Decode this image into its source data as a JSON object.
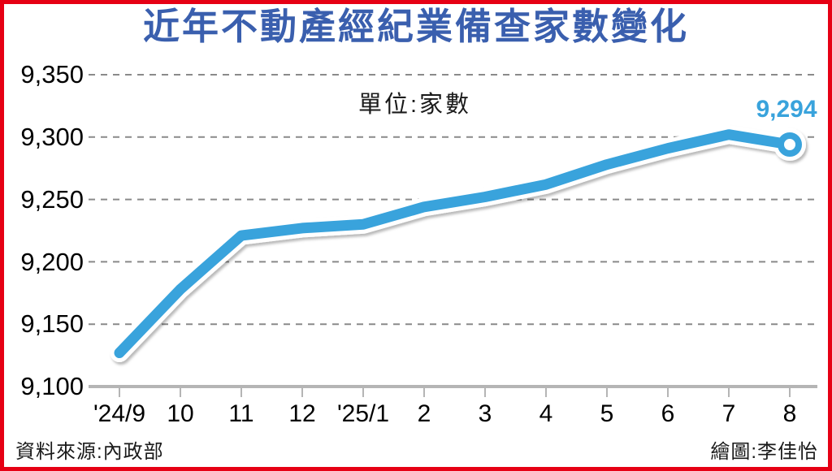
{
  "title": "近年不動產經紀業備查家數變化",
  "unit_label": "單位:家數",
  "footer": {
    "source": "資料來源:內政部",
    "credit": "繪圖:李佳怡"
  },
  "colors": {
    "line_blue": "#39a3dc",
    "title_blue": "#3a5fae",
    "border_red": "#e60014",
    "axis_gray": "#b5b5b5",
    "grid_gray": "#8a8a8a",
    "text_black": "#1a1a1a"
  },
  "chart_data": {
    "type": "line",
    "title": "近年不動產經紀業備查家數變化",
    "unit": "單位:家數",
    "categories": [
      "'24/9",
      "10",
      "11",
      "12",
      "'25/1",
      "2",
      "3",
      "4",
      "5",
      "6",
      "7",
      "8"
    ],
    "series": [
      {
        "name": "不動產經紀業備查家數",
        "values": [
          9127,
          9178,
          9221,
          9227,
          9230,
          9244,
          9252,
          9262,
          9278,
          9291,
          9302,
          9294
        ]
      }
    ],
    "ylim": [
      9100,
      9350
    ],
    "ytick_step": 50,
    "ytick_labels": [
      "9,100",
      "9,150",
      "9,200",
      "9,250",
      "9,300",
      "9,350"
    ],
    "xlabel": "",
    "ylabel": "",
    "grid": "horizontal-dashed",
    "legend": "none",
    "annotation": {
      "text": "9,294",
      "point_index": 11
    }
  }
}
